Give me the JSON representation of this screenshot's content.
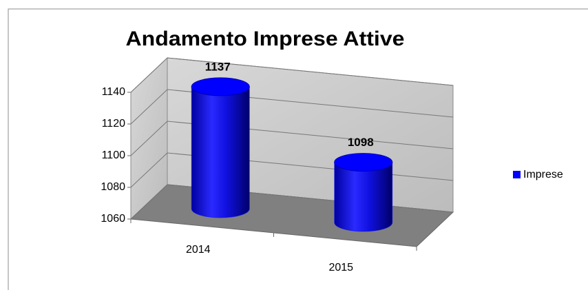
{
  "chart_data": {
    "type": "bar3d",
    "title": "Andamento Imprese Attive",
    "categories": [
      "2014",
      "2015"
    ],
    "series": [
      {
        "name": "Imprese",
        "color": "#0000ff",
        "values": [
          1137,
          1098
        ]
      }
    ],
    "ylim": [
      1060,
      1140
    ],
    "yticks": [
      1060,
      1080,
      1100,
      1120,
      1140
    ],
    "grid": true,
    "legend": "right",
    "data_labels": true
  }
}
